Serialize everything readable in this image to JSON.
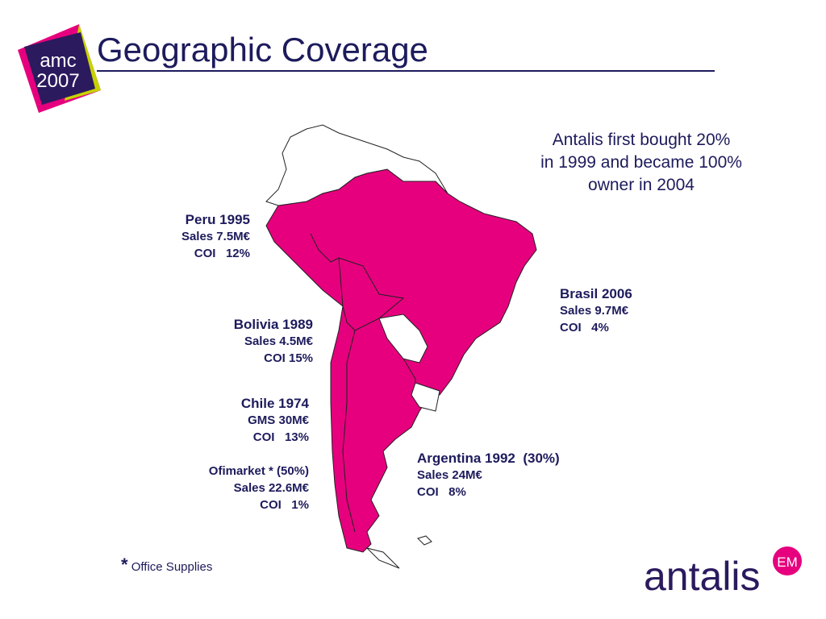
{
  "title": "Geographic Coverage",
  "logo": {
    "top": "amc",
    "bottom": "2007"
  },
  "note": [
    "Antalis first bought 20%",
    "in 1999 and became 100%",
    "owner in 2004"
  ],
  "countries": [
    {
      "lines": [
        "Peru 1995",
        "Sales 7.5M€",
        "COI   12%"
      ]
    },
    {
      "lines": [
        "Bolivia 1989",
        "Sales 4.5M€",
        "COI 15%"
      ]
    },
    {
      "lines": [
        "Chile 1974",
        "GMS 30M€",
        "COI   13%"
      ]
    },
    {
      "lines": [
        "Ofimarket * (50%)",
        "Sales 22.6M€",
        "COI   1%"
      ]
    },
    {
      "lines": [
        "Brasil 2006",
        "Sales 9.7M€",
        "COI   4%"
      ]
    },
    {
      "lines": [
        "Argentina 1992  (30%)",
        "Sales 24M€",
        "COI   8%"
      ]
    }
  ],
  "footnote": {
    "mark": "*",
    "text": "Office Supplies"
  },
  "brand": {
    "name": "antalis",
    "badge": "EM"
  }
}
